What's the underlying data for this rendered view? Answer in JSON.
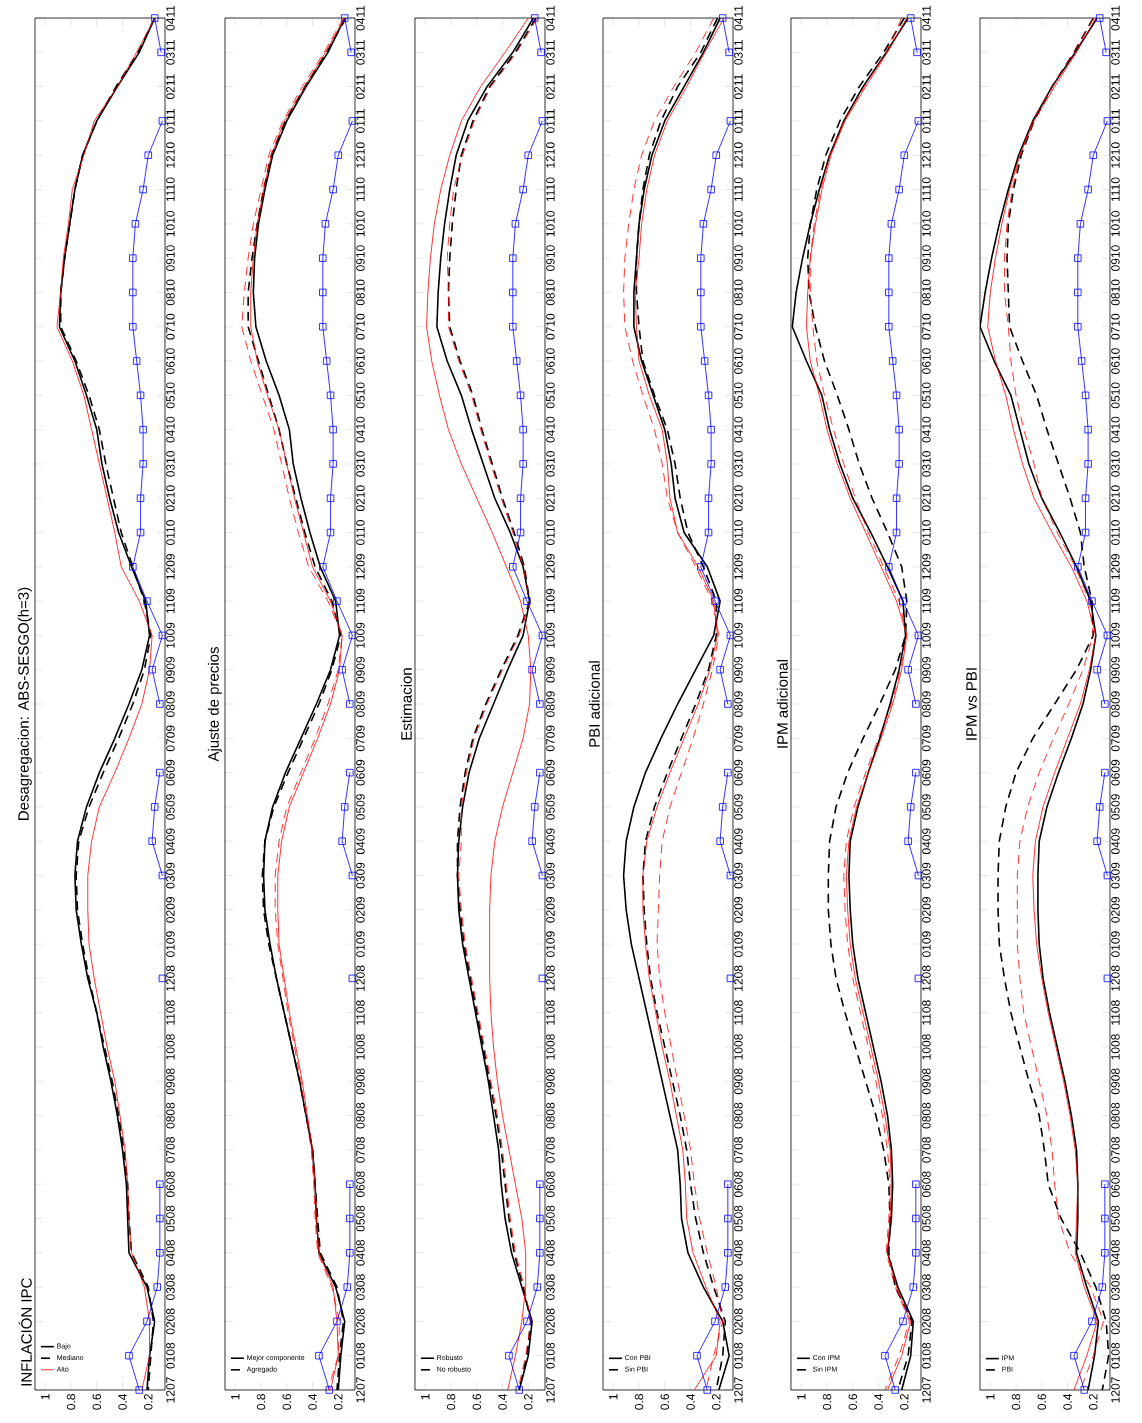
{
  "chart_data": [
    {
      "type": "line",
      "orientation": "horizontal",
      "title": "Desagregacion: ABS-SESGO(h=3)",
      "annotations": [
        "INFLACIÓN IPC"
      ],
      "categories": [
        "0411",
        "0311",
        "0211",
        "0111",
        "1210",
        "1110",
        "1010",
        "0910",
        "0810",
        "0710",
        "0610",
        "0510",
        "0410",
        "0310",
        "0210",
        "0110",
        "1209",
        "1109",
        "1009",
        "0909",
        "0809",
        "0709",
        "0609",
        "0509",
        "0409",
        "0309",
        "0209",
        "0109",
        "1208",
        "1108",
        "1008",
        "0908",
        "0808",
        "0708",
        "0608",
        "0508",
        "0408",
        "0308",
        "0208",
        "0108",
        "1207"
      ],
      "xlim": [
        1.08,
        0.07
      ],
      "xticks": [
        1,
        0.8,
        0.6,
        0.4,
        0.2
      ],
      "grid": false,
      "legend": "bottom left",
      "series": [
        {
          "name": "Bajo",
          "color": "#000000",
          "line_style": "solid",
          "marker": "none",
          "values": [
            0.15,
            0.27,
            0.44,
            0.6,
            0.71,
            0.77,
            0.81,
            0.85,
            0.88,
            0.89,
            0.77,
            0.68,
            0.6,
            0.56,
            0.5,
            0.43,
            0.33,
            0.22,
            0.19,
            0.25,
            0.35,
            0.46,
            0.58,
            0.68,
            0.75,
            0.77,
            0.76,
            0.72,
            0.67,
            0.6,
            0.55,
            0.49,
            0.44,
            0.4,
            0.37,
            0.36,
            0.35,
            0.21,
            0.15,
            0.19,
            0.21
          ]
        },
        {
          "name": "Mediano",
          "color": "#000000",
          "line_style": "dashed",
          "marker": "none",
          "values": [
            0.15,
            0.28,
            0.45,
            0.6,
            0.71,
            0.77,
            0.81,
            0.85,
            0.88,
            0.88,
            0.76,
            0.66,
            0.58,
            0.53,
            0.47,
            0.41,
            0.32,
            0.23,
            0.18,
            0.23,
            0.32,
            0.43,
            0.55,
            0.66,
            0.74,
            0.76,
            0.75,
            0.71,
            0.66,
            0.6,
            0.54,
            0.48,
            0.43,
            0.39,
            0.36,
            0.35,
            0.33,
            0.2,
            0.16,
            0.18,
            0.2
          ]
        },
        {
          "name": "Alto",
          "color": "#ff0000",
          "line_style": "solid",
          "marker": "none",
          "values": [
            0.15,
            0.29,
            0.44,
            0.62,
            0.7,
            0.79,
            0.82,
            0.86,
            0.88,
            0.91,
            0.79,
            0.7,
            0.64,
            0.58,
            0.52,
            0.46,
            0.41,
            0.27,
            0.17,
            0.19,
            0.25,
            0.35,
            0.46,
            0.58,
            0.64,
            0.67,
            0.67,
            0.66,
            0.62,
            0.57,
            0.52,
            0.46,
            0.42,
            0.38,
            0.36,
            0.35,
            0.33,
            0.23,
            0.19,
            0.19,
            0.25
          ]
        },
        {
          "color": "#0000ff",
          "line_style": "solid",
          "marker": "square",
          "values": [
            0.15,
            0.1,
            null,
            0.09,
            0.2,
            0.24,
            0.3,
            0.32,
            0.32,
            0.32,
            0.29,
            0.26,
            0.24,
            0.24,
            0.26,
            0.26,
            0.32,
            0.21,
            0.09,
            0.17,
            0.11,
            null,
            0.11,
            0.15,
            0.17,
            0.09,
            null,
            null,
            0.09,
            null,
            null,
            null,
            null,
            null,
            0.11,
            0.11,
            0.11,
            0.13,
            0.21,
            0.35,
            0.27
          ]
        }
      ]
    },
    {
      "type": "line",
      "orientation": "horizontal",
      "title": "Ajuste de precios",
      "categories": [
        "0411",
        "0311",
        "0211",
        "0111",
        "1210",
        "1110",
        "1010",
        "0910",
        "0810",
        "0710",
        "0610",
        "0510",
        "0410",
        "0310",
        "0210",
        "0110",
        "1209",
        "1109",
        "1009",
        "0909",
        "0809",
        "0709",
        "0609",
        "0509",
        "0409",
        "0309",
        "0209",
        "0109",
        "1208",
        "1108",
        "1008",
        "0908",
        "0808",
        "0708",
        "0608",
        "0508",
        "0408",
        "0308",
        "0208",
        "0108",
        "1207"
      ],
      "xlim": [
        1.08,
        0.07
      ],
      "xticks": [
        1,
        0.8,
        0.6,
        0.4,
        0.2
      ],
      "grid": false,
      "legend": "bottom left",
      "series": [
        {
          "name": "Mejor componente",
          "color": "#000000",
          "line_style": "solid",
          "marker": "none",
          "values": [
            0.15,
            0.28,
            0.45,
            0.6,
            0.71,
            0.77,
            0.82,
            0.85,
            0.86,
            0.84,
            0.76,
            0.66,
            0.58,
            0.55,
            0.49,
            0.42,
            0.34,
            0.22,
            0.19,
            0.26,
            0.37,
            0.49,
            0.61,
            0.71,
            0.77,
            0.78,
            0.77,
            0.73,
            0.68,
            0.62,
            0.56,
            0.5,
            0.45,
            0.4,
            0.38,
            0.37,
            0.35,
            0.22,
            0.15,
            0.18,
            0.2
          ]
        },
        {
          "name": "Agregado",
          "color": "#000000",
          "line_style": "dashed",
          "marker": "none",
          "values": [
            0.14,
            0.29,
            0.46,
            0.61,
            0.72,
            0.78,
            0.83,
            0.87,
            0.9,
            0.9,
            0.82,
            0.74,
            0.66,
            0.6,
            0.53,
            0.46,
            0.38,
            0.25,
            0.18,
            0.25,
            0.35,
            0.47,
            0.59,
            0.7,
            0.77,
            0.79,
            0.78,
            0.74,
            0.68,
            0.62,
            0.56,
            0.5,
            0.45,
            0.4,
            0.38,
            0.36,
            0.34,
            0.21,
            0.16,
            0.19,
            0.21
          ]
        },
        {
          "color": "#ff0000",
          "line_style": "solid",
          "marker": "none",
          "values": [
            0.15,
            0.3,
            0.46,
            0.62,
            0.72,
            0.78,
            0.83,
            0.86,
            0.88,
            0.88,
            0.83,
            0.75,
            0.66,
            0.6,
            0.54,
            0.47,
            0.4,
            0.26,
            0.17,
            0.19,
            0.26,
            0.36,
            0.47,
            0.58,
            0.64,
            0.67,
            0.67,
            0.66,
            0.62,
            0.58,
            0.53,
            0.48,
            0.44,
            0.4,
            0.38,
            0.37,
            0.35,
            0.24,
            0.21,
            0.2,
            0.26
          ]
        },
        {
          "color": "#ff0000",
          "line_style": "dashed",
          "marker": "none",
          "values": [
            0.16,
            0.31,
            0.48,
            0.63,
            0.74,
            0.8,
            0.86,
            0.9,
            0.93,
            0.95,
            0.88,
            0.79,
            0.7,
            0.64,
            0.58,
            0.51,
            0.43,
            0.28,
            0.17,
            0.2,
            0.28,
            0.38,
            0.49,
            0.6,
            0.66,
            0.69,
            0.69,
            0.67,
            0.63,
            0.59,
            0.54,
            0.49,
            0.45,
            0.41,
            0.39,
            0.38,
            0.36,
            0.25,
            0.19,
            0.2,
            0.28
          ]
        },
        {
          "color": "#0000ff",
          "line_style": "solid",
          "marker": "square",
          "values": [
            0.15,
            0.1,
            null,
            0.09,
            0.2,
            0.24,
            0.3,
            0.32,
            0.32,
            0.32,
            0.29,
            0.26,
            0.24,
            0.24,
            0.26,
            0.26,
            0.32,
            0.21,
            0.09,
            0.17,
            0.11,
            null,
            0.11,
            0.15,
            0.17,
            0.09,
            null,
            null,
            0.09,
            null,
            null,
            null,
            null,
            null,
            0.11,
            0.11,
            0.11,
            0.13,
            0.21,
            0.35,
            0.27
          ]
        }
      ]
    },
    {
      "type": "line",
      "orientation": "horizontal",
      "title": "Estimacion",
      "categories": [
        "0411",
        "0311",
        "0211",
        "0111",
        "1210",
        "1110",
        "1010",
        "0910",
        "0810",
        "0710",
        "0610",
        "0510",
        "0410",
        "0310",
        "0210",
        "0110",
        "1209",
        "1109",
        "1009",
        "0909",
        "0809",
        "0709",
        "0609",
        "0509",
        "0409",
        "0309",
        "0209",
        "0109",
        "1208",
        "1108",
        "1008",
        "0908",
        "0808",
        "0708",
        "0608",
        "0508",
        "0408",
        "0308",
        "0208",
        "0108",
        "1207"
      ],
      "xlim": [
        1.08,
        0.07
      ],
      "xticks": [
        1,
        0.8,
        0.6,
        0.4,
        0.2
      ],
      "grid": false,
      "legend": "bottom left",
      "series": [
        {
          "name": "Robusto",
          "color": "#000000",
          "line_style": "solid",
          "marker": "none",
          "values": [
            0.16,
            0.32,
            0.52,
            0.67,
            0.76,
            0.81,
            0.85,
            0.88,
            0.9,
            0.91,
            0.83,
            0.72,
            0.64,
            0.55,
            0.46,
            0.34,
            0.24,
            0.19,
            0.24,
            0.36,
            0.47,
            0.58,
            0.66,
            0.71,
            0.74,
            0.75,
            0.74,
            0.71,
            0.66,
            0.61,
            0.56,
            0.51,
            0.47,
            0.43,
            0.41,
            0.38,
            0.33,
            0.25,
            0.17,
            0.2,
            0.27
          ]
        },
        {
          "name": "No robusto",
          "color": "#000000",
          "line_style": "dashed",
          "marker": "none",
          "values": [
            0.14,
            0.3,
            0.5,
            0.63,
            0.72,
            0.76,
            0.79,
            0.81,
            0.82,
            0.81,
            0.73,
            0.63,
            0.56,
            0.48,
            0.4,
            0.31,
            0.23,
            0.19,
            0.28,
            0.41,
            0.53,
            0.63,
            0.69,
            0.73,
            0.75,
            0.75,
            0.73,
            0.7,
            0.65,
            0.6,
            0.55,
            0.5,
            0.45,
            0.41,
            0.38,
            0.35,
            0.31,
            0.24,
            0.18,
            0.21,
            0.27
          ]
        },
        {
          "color": "#ff0000",
          "line_style": "solid",
          "marker": "none",
          "values": [
            0.2,
            0.38,
            0.57,
            0.72,
            0.81,
            0.88,
            0.93,
            0.96,
            0.98,
            0.99,
            0.95,
            0.89,
            0.82,
            0.72,
            0.6,
            0.48,
            0.37,
            0.26,
            0.2,
            0.18,
            0.19,
            0.24,
            0.32,
            0.4,
            0.46,
            0.49,
            0.5,
            0.5,
            0.5,
            0.49,
            0.47,
            0.44,
            0.4,
            0.35,
            0.3,
            0.25,
            0.22,
            0.22,
            0.25,
            0.3,
            0.36
          ]
        },
        {
          "color": "#ff0000",
          "line_style": "dashed",
          "marker": "none",
          "values": [
            0.13,
            0.29,
            0.49,
            0.62,
            0.71,
            0.78,
            0.81,
            0.83,
            0.82,
            0.82,
            0.74,
            0.64,
            0.57,
            0.49,
            0.41,
            0.32,
            0.24,
            0.19,
            0.27,
            0.4,
            0.52,
            0.62,
            0.68,
            0.72,
            0.72,
            0.74,
            0.72,
            0.69,
            0.64,
            0.59,
            0.54,
            0.49,
            0.44,
            0.4,
            0.37,
            0.34,
            0.3,
            0.23,
            0.18,
            0.22,
            0.28
          ]
        },
        {
          "color": "#0000ff",
          "line_style": "solid",
          "marker": "square",
          "values": [
            0.15,
            0.1,
            null,
            0.09,
            0.2,
            0.24,
            0.3,
            0.32,
            0.32,
            0.32,
            0.29,
            0.26,
            0.24,
            0.24,
            0.26,
            0.26,
            0.32,
            0.21,
            0.09,
            0.17,
            0.11,
            null,
            0.11,
            0.15,
            0.17,
            0.09,
            null,
            null,
            0.09,
            null,
            null,
            null,
            null,
            null,
            0.11,
            0.11,
            0.11,
            0.13,
            0.21,
            0.35,
            0.27
          ]
        }
      ]
    },
    {
      "type": "line",
      "orientation": "horizontal",
      "title": "PBI adicional",
      "categories": [
        "0411",
        "0311",
        "0211",
        "0111",
        "1210",
        "1110",
        "1010",
        "0910",
        "0810",
        "0710",
        "0610",
        "0510",
        "0410",
        "0310",
        "0210",
        "0110",
        "1209",
        "1109",
        "1009",
        "0909",
        "0809",
        "0709",
        "0609",
        "0509",
        "0409",
        "0309",
        "0209",
        "0109",
        "1208",
        "1108",
        "1008",
        "0908",
        "0808",
        "0708",
        "0608",
        "0508",
        "0408",
        "0308",
        "0208",
        "0108",
        "1207"
      ],
      "xlim": [
        1.08,
        0.07
      ],
      "xticks": [
        1,
        0.8,
        0.6,
        0.4,
        0.2
      ],
      "grid": false,
      "legend": "bottom left",
      "series": [
        {
          "name": "Con PBI",
          "color": "#000000",
          "line_style": "solid",
          "marker": "none",
          "values": [
            0.17,
            0.3,
            0.45,
            0.6,
            0.7,
            0.76,
            0.8,
            0.82,
            0.84,
            0.84,
            0.78,
            0.69,
            0.6,
            0.55,
            0.52,
            0.45,
            0.27,
            0.17,
            0.22,
            0.36,
            0.5,
            0.63,
            0.75,
            0.84,
            0.9,
            0.92,
            0.9,
            0.86,
            0.8,
            0.74,
            0.68,
            0.62,
            0.56,
            0.5,
            0.48,
            0.47,
            0.42,
            0.3,
            0.15,
            0.1,
            0.18
          ]
        },
        {
          "name": "Sin PBI",
          "color": "#000000",
          "line_style": "dashed",
          "marker": "none",
          "values": [
            0.19,
            0.32,
            0.5,
            0.63,
            0.72,
            0.77,
            0.8,
            0.82,
            0.82,
            0.8,
            0.77,
            0.68,
            0.58,
            0.52,
            0.48,
            0.42,
            0.3,
            0.2,
            0.2,
            0.26,
            0.36,
            0.47,
            0.58,
            0.68,
            0.75,
            0.77,
            0.76,
            0.74,
            0.71,
            0.66,
            0.6,
            0.54,
            0.48,
            0.43,
            0.4,
            0.36,
            0.3,
            0.22,
            0.13,
            0.15,
            0.2
          ]
        },
        {
          "color": "#ff0000",
          "line_style": "solid",
          "marker": "none",
          "values": [
            0.14,
            0.29,
            0.43,
            0.58,
            0.68,
            0.74,
            0.78,
            0.8,
            0.83,
            0.82,
            0.8,
            0.72,
            0.62,
            0.58,
            0.56,
            0.5,
            0.34,
            0.22,
            0.19,
            0.25,
            0.34,
            0.45,
            0.56,
            0.66,
            0.74,
            0.77,
            0.77,
            0.75,
            0.72,
            0.67,
            0.62,
            0.56,
            0.51,
            0.46,
            0.44,
            0.43,
            0.38,
            0.28,
            0.17,
            0.2,
            0.37
          ]
        },
        {
          "color": "#ff0000",
          "line_style": "dashed",
          "marker": "none",
          "values": [
            0.22,
            0.36,
            0.53,
            0.68,
            0.78,
            0.84,
            0.88,
            0.91,
            0.92,
            0.91,
            0.85,
            0.77,
            0.68,
            0.62,
            0.58,
            0.5,
            0.36,
            0.23,
            0.18,
            0.23,
            0.3,
            0.38,
            0.47,
            0.56,
            0.62,
            0.64,
            0.65,
            0.66,
            0.64,
            0.6,
            0.55,
            0.5,
            0.45,
            0.4,
            0.37,
            0.33,
            0.27,
            0.2,
            0.15,
            0.22,
            0.28
          ]
        },
        {
          "color": "#0000ff",
          "line_style": "solid",
          "marker": "square",
          "values": [
            0.15,
            0.1,
            null,
            0.09,
            0.2,
            0.24,
            0.3,
            0.32,
            0.32,
            0.32,
            0.29,
            0.26,
            0.24,
            0.24,
            0.26,
            0.26,
            0.32,
            0.21,
            0.09,
            0.17,
            0.11,
            null,
            0.11,
            0.15,
            0.17,
            0.09,
            null,
            null,
            0.09,
            null,
            null,
            null,
            null,
            null,
            0.11,
            0.11,
            0.11,
            0.13,
            0.21,
            0.35,
            0.27
          ]
        }
      ]
    },
    {
      "type": "line",
      "orientation": "horizontal",
      "title": "IPM adicional",
      "categories": [
        "0411",
        "0311",
        "0211",
        "0111",
        "1210",
        "1110",
        "1010",
        "0910",
        "0810",
        "0710",
        "0610",
        "0510",
        "0410",
        "0310",
        "0210",
        "0110",
        "1209",
        "1109",
        "1009",
        "0909",
        "0809",
        "0709",
        "0609",
        "0509",
        "0409",
        "0309",
        "0209",
        "0109",
        "1208",
        "1108",
        "1008",
        "0908",
        "0808",
        "0708",
        "0608",
        "0508",
        "0408",
        "0308",
        "0208",
        "0108",
        "1207"
      ],
      "xlim": [
        1.08,
        0.07
      ],
      "xticks": [
        1,
        0.8,
        0.6,
        0.4,
        0.2
      ],
      "grid": false,
      "legend": "bottom left",
      "series": [
        {
          "name": "Con IPM",
          "color": "#000000",
          "line_style": "solid",
          "marker": "none",
          "values": [
            0.17,
            0.34,
            0.52,
            0.67,
            0.78,
            0.86,
            0.93,
            0.99,
            1.04,
            1.07,
            0.96,
            0.84,
            0.78,
            0.7,
            0.6,
            0.46,
            0.33,
            0.21,
            0.19,
            0.24,
            0.31,
            0.39,
            0.48,
            0.56,
            0.62,
            0.63,
            0.62,
            0.6,
            0.56,
            0.5,
            0.44,
            0.38,
            0.33,
            0.3,
            0.29,
            0.3,
            0.33,
            0.25,
            0.13,
            0.15,
            0.22
          ]
        },
        {
          "name": "Sin IPM",
          "color": "#000000",
          "line_style": "dashed",
          "marker": "none",
          "values": [
            0.2,
            0.36,
            0.55,
            0.7,
            0.81,
            0.88,
            0.93,
            0.95,
            0.94,
            0.89,
            0.82,
            0.72,
            0.63,
            0.55,
            0.45,
            0.33,
            0.22,
            0.18,
            0.19,
            0.27,
            0.39,
            0.52,
            0.64,
            0.73,
            0.78,
            0.79,
            0.79,
            0.77,
            0.73,
            0.66,
            0.58,
            0.5,
            0.42,
            0.36,
            0.32,
            0.31,
            0.32,
            0.27,
            0.14,
            0.17,
            0.25
          ]
        },
        {
          "color": "#ff0000",
          "line_style": "solid",
          "marker": "none",
          "values": [
            0.18,
            0.33,
            0.5,
            0.66,
            0.77,
            0.84,
            0.89,
            0.93,
            0.95,
            0.96,
            0.93,
            0.86,
            0.8,
            0.72,
            0.62,
            0.5,
            0.38,
            0.26,
            0.18,
            0.22,
            0.29,
            0.38,
            0.48,
            0.57,
            0.63,
            0.65,
            0.64,
            0.62,
            0.58,
            0.52,
            0.46,
            0.4,
            0.35,
            0.31,
            0.3,
            0.31,
            0.33,
            0.26,
            0.15,
            0.22,
            0.33
          ]
        },
        {
          "color": "#ff0000",
          "line_style": "dashed",
          "marker": "none",
          "values": [
            0.22,
            0.34,
            0.51,
            0.67,
            0.78,
            0.85,
            0.9,
            0.93,
            0.93,
            0.91,
            0.88,
            0.82,
            0.75,
            0.67,
            0.58,
            0.48,
            0.36,
            0.24,
            0.18,
            0.23,
            0.3,
            0.4,
            0.5,
            0.59,
            0.65,
            0.67,
            0.66,
            0.64,
            0.6,
            0.54,
            0.48,
            0.42,
            0.37,
            0.33,
            0.31,
            0.32,
            0.34,
            0.27,
            0.16,
            0.24,
            0.35
          ]
        },
        {
          "color": "#0000ff",
          "line_style": "solid",
          "marker": "square",
          "values": [
            0.15,
            0.1,
            null,
            0.09,
            0.2,
            0.24,
            0.3,
            0.32,
            0.32,
            0.32,
            0.29,
            0.26,
            0.24,
            0.24,
            0.26,
            0.26,
            0.32,
            0.21,
            0.09,
            0.17,
            0.11,
            null,
            0.11,
            0.15,
            0.17,
            0.09,
            null,
            null,
            0.09,
            null,
            null,
            null,
            null,
            null,
            0.11,
            0.11,
            0.11,
            0.13,
            0.21,
            0.35,
            0.27
          ]
        }
      ]
    },
    {
      "type": "line",
      "orientation": "horizontal",
      "title": "IPM vs PBI",
      "categories": [
        "0411",
        "0311",
        "0211",
        "0111",
        "1210",
        "1110",
        "1010",
        "0910",
        "0810",
        "0710",
        "0610",
        "0510",
        "0410",
        "0310",
        "0210",
        "0110",
        "1209",
        "1109",
        "1009",
        "0909",
        "0809",
        "0709",
        "0609",
        "0509",
        "0409",
        "0309",
        "0209",
        "0109",
        "1208",
        "1108",
        "1008",
        "0908",
        "0808",
        "0708",
        "0608",
        "0508",
        "0408",
        "0308",
        "0208",
        "0108",
        "1207"
      ],
      "xlim": [
        1.08,
        0.07
      ],
      "xticks": [
        1,
        0.8,
        0.6,
        0.4,
        0.2
      ],
      "grid": false,
      "legend": "bottom left",
      "series": [
        {
          "name": "IPM",
          "color": "#000000",
          "line_style": "solid",
          "marker": "none",
          "values": [
            0.17,
            0.34,
            0.52,
            0.67,
            0.78,
            0.86,
            0.93,
            0.99,
            1.04,
            1.08,
            0.97,
            0.84,
            0.77,
            0.7,
            0.6,
            0.46,
            0.33,
            0.22,
            0.18,
            0.22,
            0.28,
            0.37,
            0.47,
            0.56,
            0.62,
            0.63,
            0.63,
            0.62,
            0.59,
            0.54,
            0.48,
            0.42,
            0.37,
            0.33,
            0.32,
            0.32,
            0.33,
            0.25,
            0.16,
            0.19,
            0.24
          ]
        },
        {
          "name": "PBI",
          "color": "#000000",
          "line_style": "dashed",
          "marker": "none",
          "values": [
            0.2,
            0.35,
            0.52,
            0.66,
            0.76,
            0.82,
            0.86,
            0.87,
            0.86,
            0.85,
            0.75,
            0.64,
            0.56,
            0.47,
            0.38,
            0.3,
            0.27,
            0.21,
            0.2,
            0.33,
            0.5,
            0.67,
            0.8,
            0.88,
            0.93,
            0.94,
            0.94,
            0.93,
            0.89,
            0.84,
            0.77,
            0.7,
            0.62,
            0.58,
            0.55,
            0.45,
            0.3,
            0.18,
            0.1,
            0.08,
            0.13
          ]
        },
        {
          "color": "#ff0000",
          "line_style": "solid",
          "marker": "none",
          "values": [
            0.18,
            0.33,
            0.5,
            0.66,
            0.77,
            0.85,
            0.91,
            0.96,
            1.0,
            1.02,
            0.96,
            0.88,
            0.82,
            0.75,
            0.66,
            0.52,
            0.37,
            0.25,
            0.18,
            0.23,
            0.3,
            0.4,
            0.5,
            0.59,
            0.65,
            0.67,
            0.66,
            0.64,
            0.6,
            0.55,
            0.49,
            0.43,
            0.38,
            0.34,
            0.32,
            0.33,
            0.34,
            0.27,
            0.17,
            0.25,
            0.35
          ]
        },
        {
          "color": "#ff0000",
          "line_style": "dashed",
          "marker": "none",
          "values": [
            0.2,
            0.35,
            0.52,
            0.67,
            0.77,
            0.83,
            0.87,
            0.89,
            0.89,
            0.86,
            0.84,
            0.8,
            0.74,
            0.66,
            0.6,
            0.48,
            0.34,
            0.23,
            0.2,
            0.28,
            0.39,
            0.51,
            0.62,
            0.71,
            0.77,
            0.79,
            0.79,
            0.79,
            0.77,
            0.74,
            0.68,
            0.62,
            0.56,
            0.52,
            0.5,
            0.47,
            0.38,
            0.22,
            0.12,
            0.2,
            0.3
          ]
        },
        {
          "color": "#0000ff",
          "line_style": "solid",
          "marker": "square",
          "values": [
            0.15,
            0.1,
            null,
            0.09,
            0.2,
            0.24,
            0.3,
            0.32,
            0.32,
            0.32,
            0.29,
            0.26,
            0.24,
            0.24,
            0.26,
            0.26,
            0.32,
            0.21,
            0.09,
            0.17,
            0.11,
            null,
            0.11,
            0.15,
            0.17,
            0.09,
            null,
            null,
            0.09,
            null,
            null,
            null,
            null,
            null,
            0.11,
            0.11,
            0.11,
            0.13,
            0.21,
            0.35,
            0.27
          ]
        }
      ]
    }
  ]
}
